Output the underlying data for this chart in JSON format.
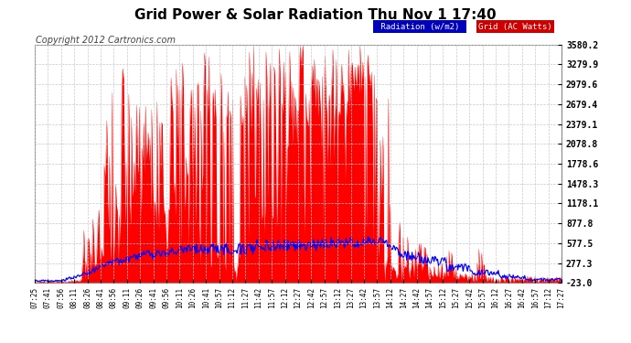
{
  "title": "Grid Power & Solar Radiation Thu Nov 1 17:40",
  "copyright": "Copyright 2012 Cartronics.com",
  "background_color": "#ffffff",
  "plot_bg_color": "#ffffff",
  "grid_color": "#c8c8c8",
  "ylim": [
    -23.0,
    3580.2
  ],
  "yticks": [
    -23.0,
    277.3,
    577.5,
    877.8,
    1178.1,
    1478.3,
    1778.6,
    2078.8,
    2379.1,
    2679.4,
    2979.6,
    3279.9,
    3580.2
  ],
  "ytick_labels": [
    "-23.0",
    "277.3",
    "577.5",
    "877.8",
    "1178.1",
    "1478.3",
    "1778.6",
    "2078.8",
    "2379.1",
    "2679.4",
    "2979.6",
    "3279.9",
    "3580.2"
  ],
  "xtick_labels": [
    "07:25",
    "07:41",
    "07:56",
    "08:11",
    "08:26",
    "08:41",
    "08:56",
    "09:11",
    "09:26",
    "09:41",
    "09:56",
    "10:11",
    "10:26",
    "10:41",
    "10:57",
    "11:12",
    "11:27",
    "11:42",
    "11:57",
    "12:12",
    "12:27",
    "12:42",
    "12:57",
    "13:12",
    "13:27",
    "13:42",
    "13:57",
    "14:12",
    "14:27",
    "14:42",
    "14:57",
    "15:12",
    "15:27",
    "15:42",
    "15:57",
    "16:12",
    "16:27",
    "16:42",
    "16:57",
    "17:12",
    "17:27"
  ],
  "legend_radiation_label": "Radiation (w/m2)",
  "legend_grid_label": "Grid (AC Watts)",
  "radiation_color": "#0000ff",
  "grid_ac_color": "#ff0000",
  "radiation_bg_color": "#0000cc",
  "grid_ac_bg_color": "#cc0000"
}
